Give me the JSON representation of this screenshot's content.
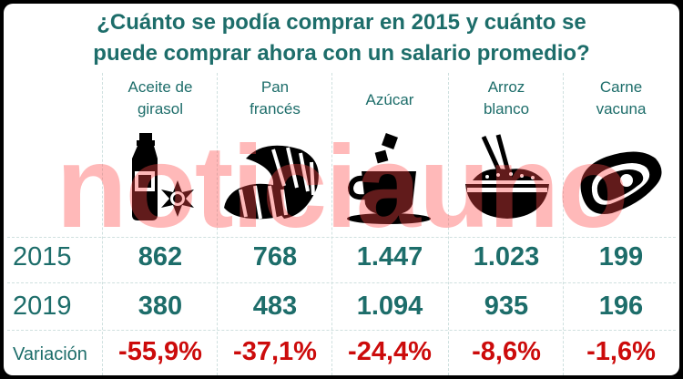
{
  "title_line1": "¿Cuánto se podía comprar en 2015 y cuánto se",
  "title_line2": "puede comprar ahora con un salario promedio?",
  "watermark": "noticiauno",
  "colors": {
    "teal": "#1d6d6a",
    "red": "#cc0b0b",
    "watermark": "#ff4646"
  },
  "chart_data": {
    "type": "table",
    "columns": [
      {
        "line1": "Aceite de",
        "line2": "girasol",
        "icon": "oil-bottle-icon"
      },
      {
        "line1": "Pan",
        "line2": "francés",
        "icon": "bread-icon"
      },
      {
        "line1": "Azúcar",
        "line2": "",
        "icon": "coffee-cup-sugar-icon"
      },
      {
        "line1": "Arroz",
        "line2": "blanco",
        "icon": "rice-bowl-icon"
      },
      {
        "line1": "Carne",
        "line2": "vacuna",
        "icon": "steak-icon"
      }
    ],
    "rows": [
      {
        "label": "2015",
        "values": [
          "862",
          "768",
          "1.447",
          "1.023",
          "199"
        ]
      },
      {
        "label": "2019",
        "values": [
          "380",
          "483",
          "1.094",
          "935",
          "196"
        ]
      },
      {
        "label": "Variación",
        "values": [
          "-55,9%",
          "-37,1%",
          "-24,4%",
          "-8,6%",
          "-1,6%"
        ]
      }
    ]
  }
}
